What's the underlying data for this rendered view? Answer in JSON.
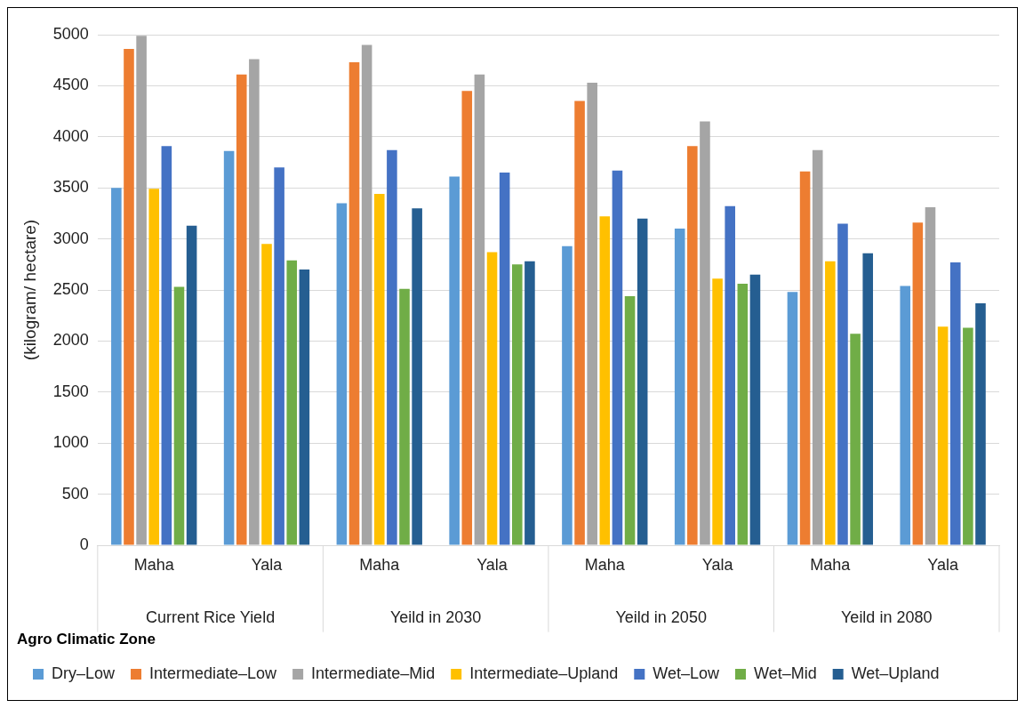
{
  "chart_data": {
    "type": "bar",
    "ylabel": "(kilogram/ hectare)",
    "legend_title": "Agro Climatic Zone",
    "categories": [
      "Maha",
      "Yala",
      "Maha",
      "Yala",
      "Maha",
      "Yala",
      "Maha",
      "Yala"
    ],
    "annotations": [
      "Current Rice Yield",
      "Yeild in 2030",
      "Yeild in 2050",
      "Yeild in 2080"
    ],
    "series": [
      {
        "name": "Dry–Low",
        "color": "#5b9bd5",
        "values": [
          3500,
          3860,
          3350,
          3610,
          2930,
          3100,
          2480,
          2540
        ]
      },
      {
        "name": "Intermediate–Low",
        "color": "#ed7d31",
        "values": [
          4860,
          4610,
          4730,
          4450,
          4350,
          3910,
          3660,
          3160
        ]
      },
      {
        "name": "Intermediate–Mid",
        "color": "#a5a5a5",
        "values": [
          4990,
          4760,
          4900,
          4610,
          4530,
          4150,
          3870,
          3310
        ]
      },
      {
        "name": "Intermediate–Upland",
        "color": "#ffc000",
        "values": [
          3490,
          2950,
          3440,
          2870,
          3220,
          2610,
          2780,
          2140
        ]
      },
      {
        "name": "Wet–Low",
        "color": "#4472c4",
        "values": [
          3910,
          3700,
          3870,
          3650,
          3670,
          3320,
          3150,
          2770
        ]
      },
      {
        "name": "Wet–Mid",
        "color": "#70ad47",
        "values": [
          2530,
          2790,
          2510,
          2750,
          2440,
          2560,
          2070,
          2130
        ]
      },
      {
        "name": "Wet–Upland",
        "color": "#255e91",
        "values": [
          3130,
          2700,
          3300,
          2780,
          3200,
          2650,
          2860,
          2370
        ]
      }
    ],
    "ylim": [
      0,
      5000
    ],
    "yticks": [
      0,
      500,
      1000,
      1500,
      2000,
      2500,
      3000,
      3500,
      4000,
      4500,
      5000
    ],
    "grid": "y",
    "legend": "bottom"
  }
}
